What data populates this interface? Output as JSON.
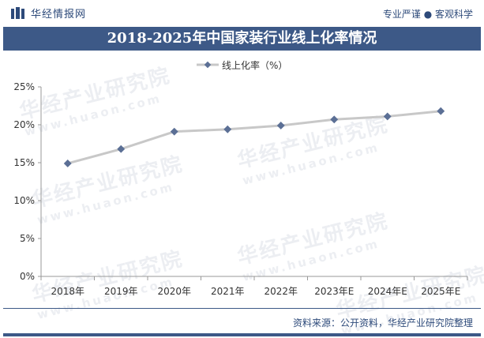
{
  "header": {
    "brand": "华经情报网",
    "tagline": "专业严谨 ● 客观科学",
    "logo_icon": "huajing-logo-icon"
  },
  "watermark": {
    "text": "华经产业研究院",
    "url": "www.huaon.com"
  },
  "footer": {
    "source": "资料来源：公开资料，华经产业研究院整理"
  },
  "colors": {
    "title_bar": "#3d5987",
    "line": "#c8c8c8",
    "marker": "#5b6f95",
    "text": "#2d4a7a"
  },
  "chart_data": {
    "type": "line",
    "title": "2018-2025年中国家装行业线上化率情况",
    "xlabel": "",
    "ylabel": "",
    "categories": [
      "2018年",
      "2019年",
      "2020年",
      "2021年",
      "2022年",
      "2023年E",
      "2024年E",
      "2025年E"
    ],
    "series": [
      {
        "name": "线上化率（%）",
        "values": [
          14.9,
          16.8,
          19.1,
          19.4,
          19.9,
          20.7,
          21.1,
          21.8
        ]
      }
    ],
    "ylim": [
      0,
      25
    ],
    "yticks": [
      "0%",
      "5%",
      "10%",
      "15%",
      "20%",
      "25%"
    ],
    "ytick_values": [
      0,
      5,
      10,
      15,
      20,
      25
    ],
    "grid": false,
    "legend_position": "top-center"
  }
}
